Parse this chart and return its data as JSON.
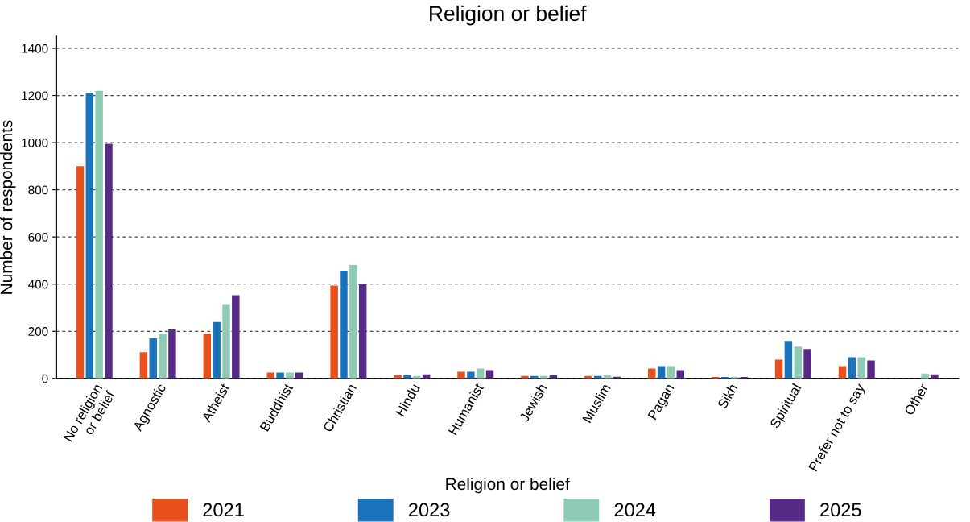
{
  "chart_data": {
    "type": "bar",
    "title": "Religion or belief",
    "xlabel": "Religion or belief",
    "ylabel": "Number of respondents",
    "categories": [
      "No religion\nor belief",
      "Agnostic",
      "Atheist",
      "Buddhist",
      "Christian",
      "Hindu",
      "Humanist",
      "Jewish",
      "Muslim",
      "Pagan",
      "Sikh",
      "Spiritual",
      "Prefer not to say",
      "Other"
    ],
    "series": [
      {
        "name": "2021",
        "color": "#e8501e",
        "values": [
          900,
          111,
          190,
          25,
          394,
          14,
          28,
          10,
          10,
          42,
          6,
          80,
          52,
          null
        ]
      },
      {
        "name": "2023",
        "color": "#1a73ba",
        "values": [
          1210,
          170,
          239,
          25,
          457,
          14,
          28,
          10,
          10,
          52,
          6,
          159,
          90,
          null
        ]
      },
      {
        "name": "2024",
        "color": "#8ecbb5",
        "values": [
          1220,
          190,
          315,
          25,
          481,
          10,
          42,
          10,
          14,
          52,
          6,
          135,
          90,
          21
        ]
      },
      {
        "name": "2025",
        "color": "#562a85",
        "values": [
          995,
          208,
          353,
          25,
          401,
          17,
          35,
          14,
          7,
          35,
          6,
          125,
          76,
          17
        ]
      }
    ],
    "ylim": [
      0,
      1450
    ],
    "yticks": [
      0,
      200,
      400,
      600,
      800,
      1000,
      1200,
      1400
    ],
    "grid": "y",
    "legend": "bottom"
  }
}
